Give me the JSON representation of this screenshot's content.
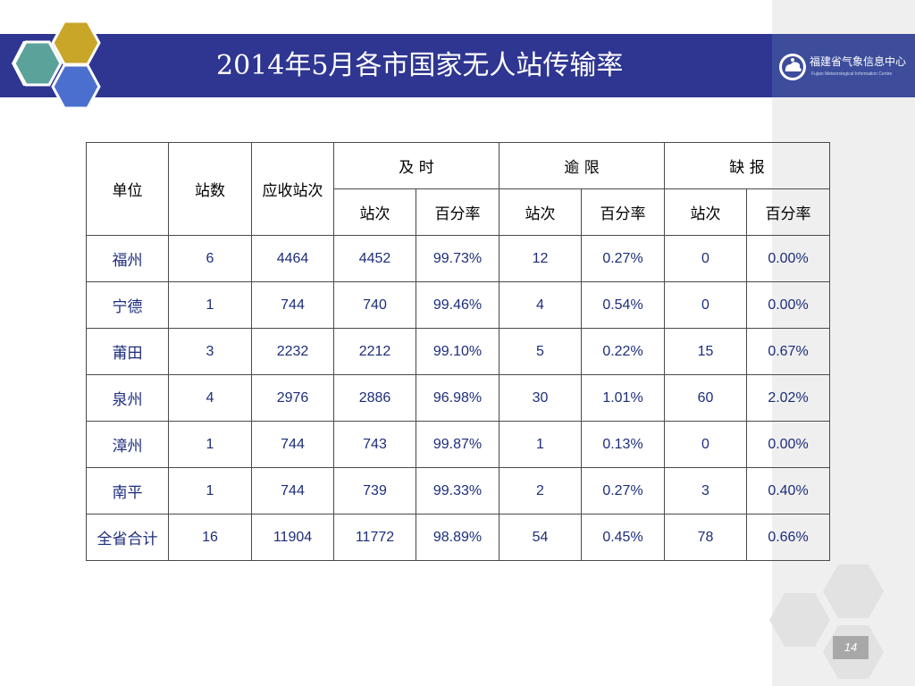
{
  "title": "2014年5月各市国家无人站传输率",
  "logo": {
    "name_cn": "福建省气象信息中心",
    "name_en": "Fujian Meteorological Information Centre"
  },
  "page_number": "14",
  "table": {
    "headers": {
      "unit": "单位",
      "stations": "站数",
      "expected": "应收站次",
      "ontime": "及 时",
      "overdue": "逾 限",
      "missing": "缺 报",
      "count": "站次",
      "percent": "百分率"
    },
    "rows": [
      {
        "city": "福州",
        "stations": "6",
        "expected": "4464",
        "ontime_count": "4452",
        "ontime_pct": "99.73%",
        "overdue_count": "12",
        "overdue_pct": "0.27%",
        "missing_count": "0",
        "missing_pct": "0.00%"
      },
      {
        "city": "宁德",
        "stations": "1",
        "expected": "744",
        "ontime_count": "740",
        "ontime_pct": "99.46%",
        "overdue_count": "4",
        "overdue_pct": "0.54%",
        "missing_count": "0",
        "missing_pct": "0.00%"
      },
      {
        "city": "莆田",
        "stations": "3",
        "expected": "2232",
        "ontime_count": "2212",
        "ontime_pct": "99.10%",
        "overdue_count": "5",
        "overdue_pct": "0.22%",
        "missing_count": "15",
        "missing_pct": "0.67%"
      },
      {
        "city": "泉州",
        "stations": "4",
        "expected": "2976",
        "ontime_count": "2886",
        "ontime_pct": "96.98%",
        "overdue_count": "30",
        "overdue_pct": "1.01%",
        "missing_count": "60",
        "missing_pct": "2.02%"
      },
      {
        "city": "漳州",
        "stations": "1",
        "expected": "744",
        "ontime_count": "743",
        "ontime_pct": "99.87%",
        "overdue_count": "1",
        "overdue_pct": "0.13%",
        "missing_count": "0",
        "missing_pct": "0.00%"
      },
      {
        "city": "南平",
        "stations": "1",
        "expected": "744",
        "ontime_count": "739",
        "ontime_pct": "99.33%",
        "overdue_count": "2",
        "overdue_pct": "0.27%",
        "missing_count": "3",
        "missing_pct": "0.40%"
      },
      {
        "city": "全省合计",
        "stations": "16",
        "expected": "11904",
        "ontime_count": "11772",
        "ontime_pct": "98.89%",
        "overdue_count": "54",
        "overdue_pct": "0.45%",
        "missing_count": "78",
        "missing_pct": "0.66%"
      }
    ]
  },
  "colors": {
    "title_bar": "#2f3691",
    "hex_teal": "#5ba39a",
    "hex_gold": "#c9a528",
    "hex_blue": "#4a6fcf",
    "cell_text": "#1d2d7a"
  }
}
